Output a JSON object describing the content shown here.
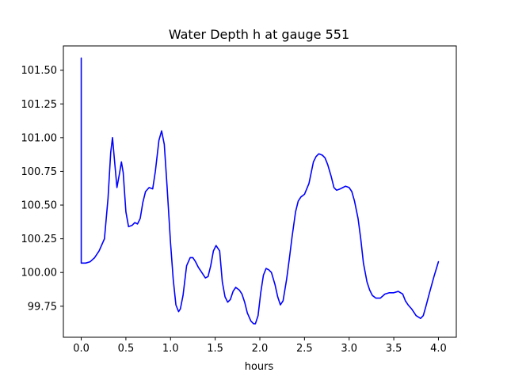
{
  "chart_data": {
    "type": "line",
    "title": "Water Depth h at gauge 551",
    "xlabel": "hours",
    "ylabel": "",
    "xlim": [
      -0.2,
      4.2
    ],
    "ylim": [
      99.52,
      101.68
    ],
    "xticks": [
      0.0,
      0.5,
      1.0,
      1.5,
      2.0,
      2.5,
      3.0,
      3.5,
      4.0
    ],
    "xtick_labels": [
      "0.0",
      "0.5",
      "1.0",
      "1.5",
      "2.0",
      "2.5",
      "3.0",
      "3.5",
      "4.0"
    ],
    "yticks": [
      99.75,
      100.0,
      100.25,
      100.5,
      100.75,
      101.0,
      101.25,
      101.5
    ],
    "ytick_labels": [
      "99.75",
      "100.00",
      "100.25",
      "100.50",
      "100.75",
      "101.00",
      "101.25",
      "101.50"
    ],
    "grid": false,
    "series": [
      {
        "name": "",
        "color": "#0000ff",
        "x": [
          0.0,
          0.0,
          0.0,
          0.05,
          0.1,
          0.15,
          0.2,
          0.26,
          0.3,
          0.33,
          0.35,
          0.37,
          0.4,
          0.43,
          0.45,
          0.47,
          0.5,
          0.53,
          0.57,
          0.6,
          0.63,
          0.66,
          0.69,
          0.72,
          0.76,
          0.8,
          0.83,
          0.87,
          0.9,
          0.93,
          0.96,
          1.0,
          1.03,
          1.06,
          1.09,
          1.11,
          1.14,
          1.18,
          1.22,
          1.25,
          1.28,
          1.31,
          1.35,
          1.39,
          1.42,
          1.45,
          1.48,
          1.51,
          1.55,
          1.58,
          1.61,
          1.64,
          1.67,
          1.7,
          1.73,
          1.77,
          1.8,
          1.83,
          1.86,
          1.9,
          1.93,
          1.95,
          1.98,
          2.01,
          2.04,
          2.07,
          2.1,
          2.13,
          2.17,
          2.2,
          2.23,
          2.26,
          2.3,
          2.33,
          2.36,
          2.4,
          2.43,
          2.46,
          2.5,
          2.55,
          2.6,
          2.63,
          2.66,
          2.7,
          2.73,
          2.76,
          2.8,
          2.83,
          2.86,
          2.9,
          2.93,
          2.96,
          3.0,
          3.03,
          3.06,
          3.1,
          3.13,
          3.16,
          3.2,
          3.23,
          3.26,
          3.3,
          3.35,
          3.4,
          3.45,
          3.5,
          3.55,
          3.6,
          3.63,
          3.66,
          3.7,
          3.75,
          3.8,
          3.83,
          3.86,
          3.9,
          3.95,
          4.0
        ],
        "y": [
          101.59,
          101.0,
          100.07,
          100.07,
          100.08,
          100.11,
          100.16,
          100.25,
          100.55,
          100.89,
          101.0,
          100.85,
          100.63,
          100.74,
          100.82,
          100.74,
          100.45,
          100.34,
          100.35,
          100.37,
          100.36,
          100.4,
          100.52,
          100.6,
          100.63,
          100.62,
          100.75,
          100.98,
          101.05,
          100.95,
          100.65,
          100.22,
          99.95,
          99.76,
          99.71,
          99.73,
          99.83,
          100.05,
          100.11,
          100.11,
          100.08,
          100.04,
          100.0,
          99.96,
          99.97,
          100.05,
          100.16,
          100.2,
          100.16,
          99.93,
          99.82,
          99.78,
          99.8,
          99.86,
          99.89,
          99.87,
          99.84,
          99.78,
          99.7,
          99.64,
          99.62,
          99.62,
          99.68,
          99.85,
          99.98,
          100.03,
          100.02,
          100.0,
          99.91,
          99.82,
          99.76,
          99.79,
          99.95,
          100.1,
          100.26,
          100.45,
          100.53,
          100.56,
          100.58,
          100.66,
          100.82,
          100.86,
          100.88,
          100.87,
          100.85,
          100.8,
          100.71,
          100.63,
          100.61,
          100.62,
          100.63,
          100.64,
          100.63,
          100.6,
          100.53,
          100.4,
          100.25,
          100.07,
          99.93,
          99.87,
          99.83,
          99.81,
          99.81,
          99.84,
          99.85,
          99.85,
          99.86,
          99.84,
          99.79,
          99.76,
          99.73,
          99.68,
          99.66,
          99.68,
          99.75,
          99.85,
          99.97,
          100.08
        ]
      }
    ]
  }
}
